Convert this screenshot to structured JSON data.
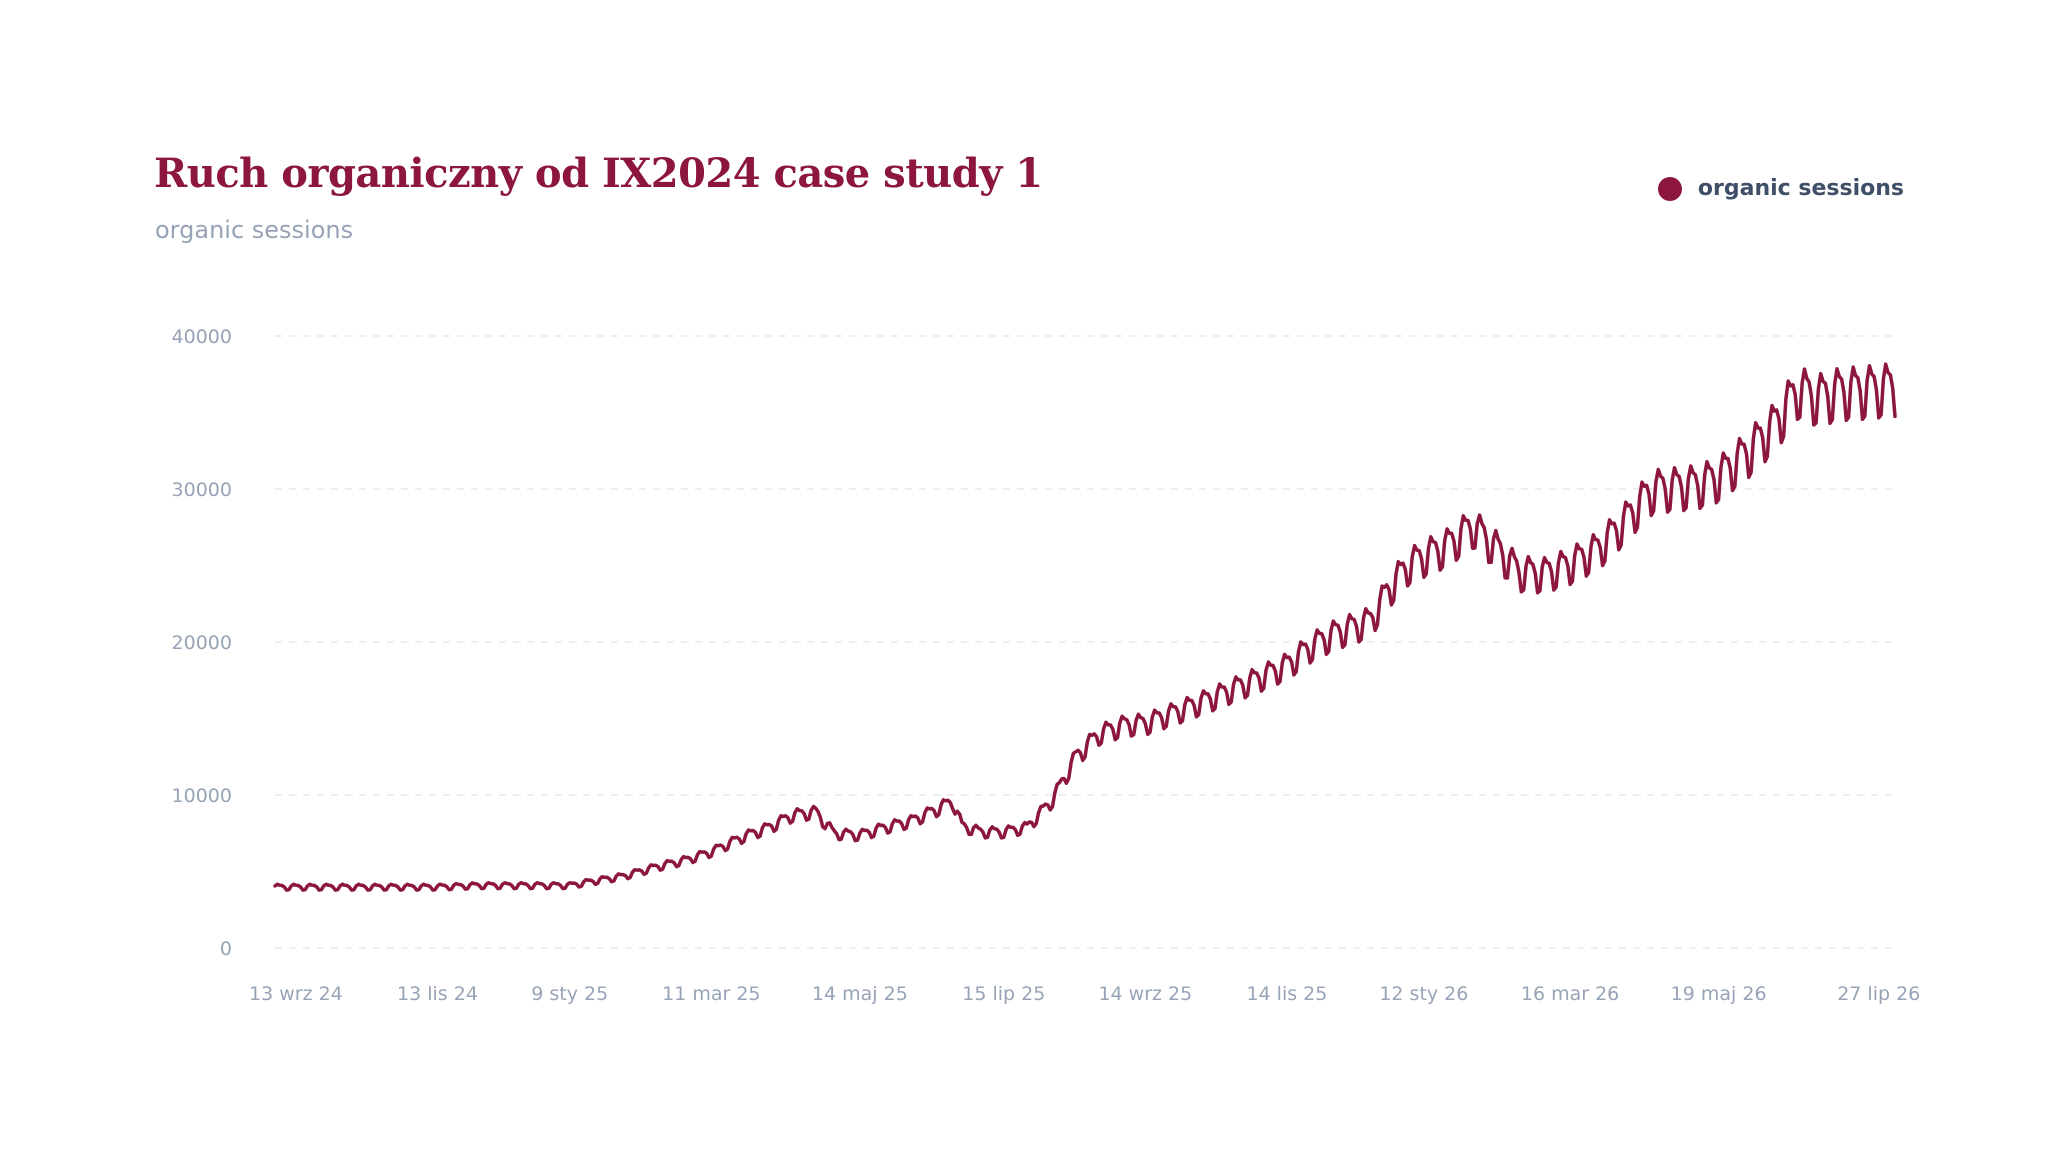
{
  "colors": {
    "accent": "#8c1640",
    "axis_text": "#97a3b6",
    "legend_text": "#3f4f68",
    "grid": "#e6e9ee"
  },
  "legend": {
    "label": "organic sessions",
    "marker": "filled-circle"
  },
  "chart_data": {
    "type": "line",
    "title": "Ruch organiczny od IX2024 case study 1",
    "subtitle": "organic sessions",
    "xlabel": "",
    "ylabel": "",
    "ylim": [
      0,
      40000
    ],
    "yticks": [
      0,
      10000,
      20000,
      30000,
      40000
    ],
    "xlim": [
      "2024-09-04",
      "2026-08-03"
    ],
    "xticks": [
      {
        "date": "2024-09-13",
        "label": "13 wrz 24"
      },
      {
        "date": "2024-11-13",
        "label": "13 lis 24"
      },
      {
        "date": "2025-01-09",
        "label": "9 sty 25"
      },
      {
        "date": "2025-03-11",
        "label": "11 mar 25"
      },
      {
        "date": "2025-05-14",
        "label": "14 maj 25"
      },
      {
        "date": "2025-07-15",
        "label": "15 lip 25"
      },
      {
        "date": "2025-09-14",
        "label": "14 wrz 25"
      },
      {
        "date": "2025-11-14",
        "label": "14 lis 25"
      },
      {
        "date": "2026-01-12",
        "label": "12 sty 26"
      },
      {
        "date": "2026-03-16",
        "label": "16 mar 26"
      },
      {
        "date": "2026-05-19",
        "label": "19 maj 26"
      },
      {
        "date": "2026-07-27",
        "label": "27 lip 26"
      }
    ],
    "grid": true,
    "legend_position": "top-right",
    "series": [
      {
        "name": "organic sessions",
        "color": "#8c1640",
        "points": [
          [
            "2024-09-04",
            4000
          ],
          [
            "2024-09-13",
            4000
          ],
          [
            "2024-09-30",
            4000
          ],
          [
            "2024-10-15",
            4000
          ],
          [
            "2024-11-01",
            4000
          ],
          [
            "2024-11-13",
            4000
          ],
          [
            "2024-12-01",
            4100
          ],
          [
            "2024-12-15",
            4100
          ],
          [
            "2025-01-01",
            4100
          ],
          [
            "2025-01-09",
            4100
          ],
          [
            "2025-01-20",
            4400
          ],
          [
            "2025-02-01",
            4700
          ],
          [
            "2025-02-15",
            5300
          ],
          [
            "2025-03-01",
            5800
          ],
          [
            "2025-03-11",
            6300
          ],
          [
            "2025-03-25",
            7300
          ],
          [
            "2025-04-05",
            7900
          ],
          [
            "2025-04-15",
            8700
          ],
          [
            "2025-04-25",
            8900
          ],
          [
            "2025-05-03",
            7500
          ],
          [
            "2025-05-14",
            7400
          ],
          [
            "2025-05-25",
            7900
          ],
          [
            "2025-06-05",
            8300
          ],
          [
            "2025-06-15",
            9000
          ],
          [
            "2025-06-23",
            9600
          ],
          [
            "2025-06-27",
            8000
          ],
          [
            "2025-07-05",
            7600
          ],
          [
            "2025-07-15",
            7600
          ],
          [
            "2025-07-25",
            7900
          ],
          [
            "2025-08-05",
            9700
          ],
          [
            "2025-08-15",
            12500
          ],
          [
            "2025-08-25",
            14000
          ],
          [
            "2025-09-05",
            14600
          ],
          [
            "2025-09-14",
            14700
          ],
          [
            "2025-09-30",
            15600
          ],
          [
            "2025-10-15",
            16500
          ],
          [
            "2025-11-01",
            17600
          ],
          [
            "2025-11-14",
            18500
          ],
          [
            "2025-11-25",
            19800
          ],
          [
            "2025-12-05",
            20600
          ],
          [
            "2025-12-20",
            21400
          ],
          [
            "2025-12-28",
            23500
          ],
          [
            "2026-01-05",
            25000
          ],
          [
            "2026-01-12",
            25600
          ],
          [
            "2026-01-22",
            26300
          ],
          [
            "2026-02-02",
            27600
          ],
          [
            "2026-02-12",
            26200
          ],
          [
            "2026-02-22",
            24600
          ],
          [
            "2026-03-05",
            24500
          ],
          [
            "2026-03-16",
            25100
          ],
          [
            "2026-03-28",
            26100
          ],
          [
            "2026-04-08",
            27800
          ],
          [
            "2026-04-18",
            29600
          ],
          [
            "2026-04-21",
            30000
          ],
          [
            "2026-05-10",
            30300
          ],
          [
            "2026-05-19",
            30800
          ],
          [
            "2026-06-01",
            32500
          ],
          [
            "2026-06-12",
            34200
          ],
          [
            "2026-06-22",
            36500
          ],
          [
            "2026-07-01",
            36000
          ],
          [
            "2026-07-10",
            36400
          ],
          [
            "2026-07-20",
            36500
          ],
          [
            "2026-07-27",
            36600
          ],
          [
            "2026-08-03",
            36700
          ]
        ]
      }
    ]
  }
}
